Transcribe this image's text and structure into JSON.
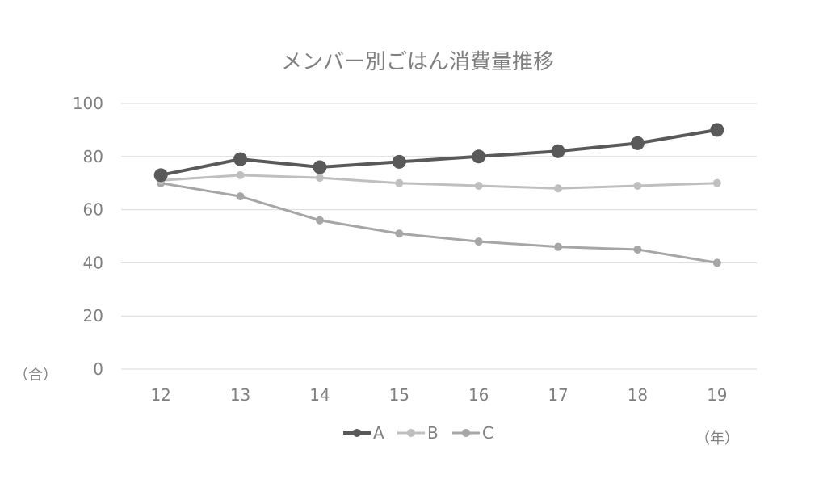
{
  "chart_data": {
    "type": "line",
    "title": "メンバー別ごはん消費量推移",
    "x_unit": "（年）",
    "y_unit": "（合）",
    "categories": [
      "12",
      "13",
      "14",
      "15",
      "16",
      "17",
      "18",
      "19"
    ],
    "ylim": [
      0,
      100
    ],
    "yticks": [
      0,
      20,
      40,
      60,
      80,
      100
    ],
    "grid": true,
    "legend_position": "bottom",
    "series": [
      {
        "name": "A",
        "color": "#595959",
        "values": [
          73,
          79,
          76,
          78,
          80,
          82,
          85,
          90
        ]
      },
      {
        "name": "B",
        "color": "#bfbfbf",
        "values": [
          71,
          73,
          72,
          70,
          69,
          68,
          69,
          70
        ]
      },
      {
        "name": "C",
        "color": "#a6a6a6",
        "values": [
          70,
          65,
          56,
          51,
          48,
          46,
          45,
          40
        ]
      }
    ]
  }
}
